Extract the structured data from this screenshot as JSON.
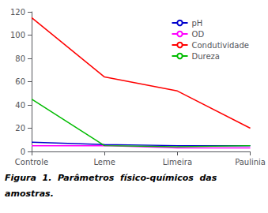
{
  "chart_data": {
    "type": "line",
    "categories": [
      "Controle",
      "Leme",
      "Limeira",
      "Paulinia"
    ],
    "series": [
      {
        "name": "pH",
        "color": "#0000CC",
        "values": [
          8,
          6,
          5,
          5
        ]
      },
      {
        "name": "OD",
        "color": "#FF00FF",
        "values": [
          5,
          5,
          3,
          3
        ]
      },
      {
        "name": "Condutividade",
        "color": "#FF0000",
        "values": [
          115,
          64,
          52,
          20
        ]
      },
      {
        "name": "Dureza",
        "color": "#00BB00",
        "values": [
          45,
          5,
          4,
          5
        ]
      }
    ],
    "ylim": [
      0,
      120
    ],
    "yticks": [
      0,
      20,
      40,
      60,
      80,
      100,
      120
    ],
    "legend": "upper right",
    "grid": false,
    "annotations": [
      "Figura  1.  Parâmetros  físico-químicos  das",
      "amostras."
    ]
  }
}
